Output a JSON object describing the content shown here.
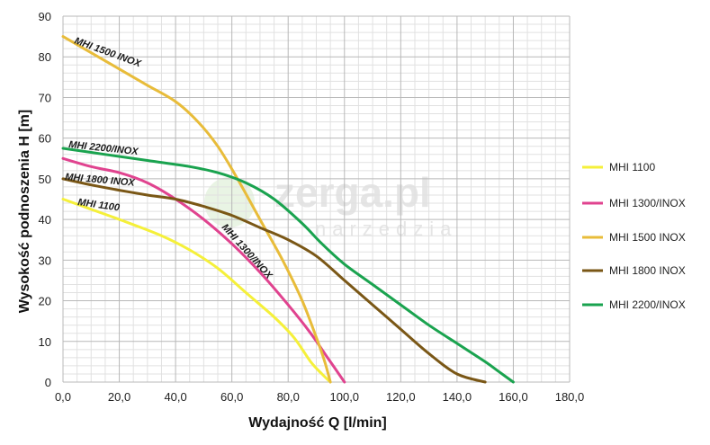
{
  "chart_data": {
    "type": "line",
    "xlabel": "Wydajność Q [l/min]",
    "ylabel": "Wysokość podnoszenia H [m]",
    "xlim": [
      0,
      180
    ],
    "ylim": [
      0,
      90
    ],
    "x_ticks": [
      0,
      20,
      40,
      60,
      80,
      100,
      120,
      140,
      160,
      180
    ],
    "x_tick_labels": [
      "0,0",
      "20,0",
      "40,0",
      "60,0",
      "80,0",
      "100,0",
      "120,0",
      "140,0",
      "160,0",
      "180,0"
    ],
    "y_ticks": [
      0,
      10,
      20,
      30,
      40,
      50,
      60,
      70,
      80,
      90
    ],
    "y_tick_labels": [
      "0",
      "10",
      "20",
      "30",
      "40",
      "50",
      "60",
      "70",
      "80",
      "90"
    ],
    "grid": true,
    "legend_position": "right",
    "watermark": {
      "main": "zerga.pl",
      "sub": "narzedzia"
    },
    "series": [
      {
        "name": "MHI 1100",
        "curve_label": "MHI 1100",
        "color": "#f5f03a",
        "points": [
          [
            0,
            45
          ],
          [
            10,
            42.5
          ],
          [
            20,
            40
          ],
          [
            35,
            36
          ],
          [
            45,
            32.5
          ],
          [
            55,
            28
          ],
          [
            65,
            22
          ],
          [
            75,
            16
          ],
          [
            82,
            11
          ],
          [
            88,
            5
          ],
          [
            92,
            2
          ],
          [
            95,
            0
          ]
        ]
      },
      {
        "name": "MHI 1300/INOX",
        "curve_label": "MHI 1300/INOX",
        "color": "#e0438f",
        "points": [
          [
            0,
            55
          ],
          [
            10,
            53
          ],
          [
            20,
            51.5
          ],
          [
            30,
            49
          ],
          [
            40,
            45
          ],
          [
            50,
            40
          ],
          [
            60,
            34
          ],
          [
            70,
            27
          ],
          [
            80,
            19
          ],
          [
            88,
            12
          ],
          [
            94,
            6
          ],
          [
            97,
            3
          ],
          [
            100,
            0
          ]
        ]
      },
      {
        "name": "MHI 1500 INOX",
        "curve_label": "MHI 1500 INOX",
        "color": "#e8bc3a",
        "points": [
          [
            0,
            85
          ],
          [
            10,
            81
          ],
          [
            20,
            77
          ],
          [
            30,
            73
          ],
          [
            40,
            69
          ],
          [
            48,
            64
          ],
          [
            55,
            58
          ],
          [
            62,
            50
          ],
          [
            70,
            40
          ],
          [
            78,
            30
          ],
          [
            85,
            20
          ],
          [
            90,
            11
          ],
          [
            93,
            5
          ],
          [
            95,
            0
          ]
        ]
      },
      {
        "name": "MHI 1800 INOX",
        "curve_label": "MHI 1800 INOX",
        "color": "#7a5716",
        "points": [
          [
            0,
            50
          ],
          [
            10,
            48.5
          ],
          [
            20,
            47.2
          ],
          [
            30,
            46
          ],
          [
            40,
            45
          ],
          [
            50,
            43.2
          ],
          [
            60,
            41
          ],
          [
            70,
            38
          ],
          [
            80,
            35
          ],
          [
            90,
            31
          ],
          [
            100,
            25
          ],
          [
            110,
            19
          ],
          [
            120,
            13
          ],
          [
            130,
            7
          ],
          [
            140,
            2
          ],
          [
            150,
            0
          ]
        ]
      },
      {
        "name": "MHI 2200/INOX",
        "curve_label": "MHI 2200/INOX",
        "color": "#1aa34f",
        "points": [
          [
            0,
            57.5
          ],
          [
            15,
            56
          ],
          [
            30,
            54.5
          ],
          [
            45,
            53
          ],
          [
            55,
            51.5
          ],
          [
            65,
            49
          ],
          [
            75,
            45
          ],
          [
            85,
            39
          ],
          [
            92,
            34
          ],
          [
            100,
            29
          ],
          [
            110,
            24
          ],
          [
            120,
            19
          ],
          [
            130,
            14
          ],
          [
            140,
            9.5
          ],
          [
            150,
            5
          ],
          [
            155,
            2.5
          ],
          [
            160,
            0
          ]
        ]
      }
    ]
  }
}
